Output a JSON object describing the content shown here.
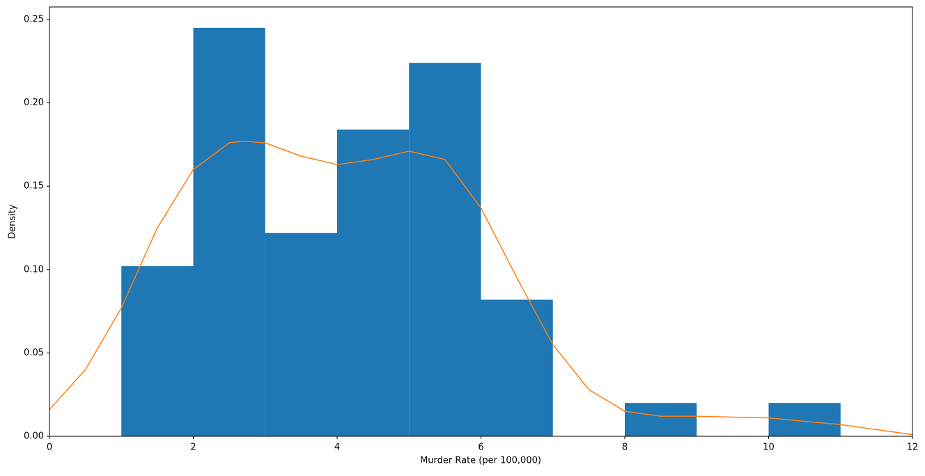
{
  "chart_data": {
    "type": "histogram",
    "xlabel": "Murder Rate (per 100,000)",
    "ylabel": "Density",
    "bins": [
      1,
      2,
      3,
      4,
      5,
      6,
      7,
      8,
      9,
      10,
      11
    ],
    "values": [
      0.102,
      0.245,
      0.122,
      0.184,
      0.224,
      0.082,
      0,
      0.02,
      0,
      0.02
    ],
    "color": "#1f77b4",
    "kde": {
      "type": "line",
      "color": "#ff7f0e",
      "x": [
        0,
        0.5,
        1,
        1.5,
        2,
        2.5,
        2.7,
        3,
        3.5,
        4,
        4.5,
        5,
        5.5,
        6,
        6.5,
        7,
        7.5,
        8,
        8.5,
        9,
        9.5,
        10,
        10.5,
        11,
        11.5,
        12
      ],
      "values": [
        0.016,
        0.04,
        0.077,
        0.125,
        0.16,
        0.176,
        0.177,
        0.176,
        0.168,
        0.163,
        0.166,
        0.171,
        0.166,
        0.137,
        0.095,
        0.055,
        0.028,
        0.015,
        0.012,
        0.012,
        0.0115,
        0.011,
        0.009,
        0.007,
        0.004,
        0.001
      ]
    },
    "xlim": [
      0,
      12
    ],
    "xticks": [
      0,
      2,
      4,
      6,
      8,
      10,
      12
    ],
    "ylim": [
      0,
      0.2575
    ],
    "yticks": [
      {
        "value": 0,
        "label": "0.00"
      },
      0.05,
      {
        "value": 0.1,
        "label": "0.10"
      },
      0.15,
      {
        "value": 0.2,
        "label": "0.20"
      },
      0.25
    ],
    "grid": false
  }
}
